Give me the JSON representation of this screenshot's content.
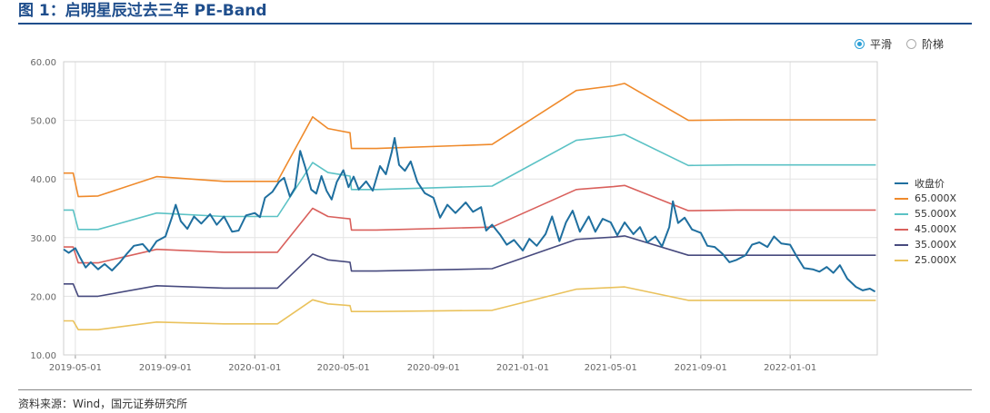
{
  "figure": {
    "title": "图 1：启明星辰过去三年 PE-Band",
    "source": "资料来源：Wind，国元证券研究所"
  },
  "toggle": {
    "options": [
      {
        "label": "平滑",
        "selected": true
      },
      {
        "label": "阶梯",
        "selected": false
      }
    ]
  },
  "colors": {
    "price": "#1f6f9f",
    "pe65": "#ef8a2b",
    "pe55": "#5bc2c5",
    "pe45": "#d9605c",
    "pe35": "#474a7e",
    "pe25": "#eac25c",
    "grid": "#e3e3e3",
    "axis_text": "#666666"
  },
  "chart_data": {
    "type": "line",
    "title": "",
    "xlabel": "",
    "ylabel": "",
    "ylim": [
      10,
      60
    ],
    "yticks": [
      "10.00",
      "20.00",
      "30.00",
      "40.00",
      "50.00",
      "60.00"
    ],
    "xticks": [
      "2019-05-01",
      "2019-09-01",
      "2020-01-01",
      "2020-05-01",
      "2020-09-01",
      "2021-01-01",
      "2021-05-01",
      "2021-09-01",
      "2022-01-01"
    ],
    "xrange": [
      "2019-04-15",
      "2022-04-30"
    ],
    "grid": true,
    "legend_position": "right",
    "series": [
      {
        "name": "收盘价",
        "key": "price",
        "points": [
          [
            "2019-04-15",
            28.0
          ],
          [
            "2019-04-22",
            27.4
          ],
          [
            "2019-05-01",
            28.2
          ],
          [
            "2019-05-08",
            26.5
          ],
          [
            "2019-05-15",
            24.9
          ],
          [
            "2019-05-22",
            25.8
          ],
          [
            "2019-06-01",
            24.6
          ],
          [
            "2019-06-10",
            25.5
          ],
          [
            "2019-06-20",
            24.4
          ],
          [
            "2019-07-01",
            25.8
          ],
          [
            "2019-07-10",
            27.2
          ],
          [
            "2019-07-20",
            28.6
          ],
          [
            "2019-08-01",
            28.9
          ],
          [
            "2019-08-10",
            27.6
          ],
          [
            "2019-08-20",
            29.4
          ],
          [
            "2019-09-01",
            30.2
          ],
          [
            "2019-09-10",
            33.5
          ],
          [
            "2019-09-15",
            35.6
          ],
          [
            "2019-09-22",
            32.8
          ],
          [
            "2019-10-01",
            31.5
          ],
          [
            "2019-10-10",
            33.6
          ],
          [
            "2019-10-20",
            32.4
          ],
          [
            "2019-11-01",
            34.0
          ],
          [
            "2019-11-10",
            32.2
          ],
          [
            "2019-11-20",
            33.6
          ],
          [
            "2019-12-01",
            31.0
          ],
          [
            "2019-12-10",
            31.2
          ],
          [
            "2019-12-20",
            33.8
          ],
          [
            "2020-01-01",
            34.2
          ],
          [
            "2020-01-08",
            33.5
          ],
          [
            "2020-01-15",
            36.8
          ],
          [
            "2020-01-25",
            37.8
          ],
          [
            "2020-02-03",
            39.5
          ],
          [
            "2020-02-10",
            40.2
          ],
          [
            "2020-02-18",
            37.0
          ],
          [
            "2020-02-25",
            38.5
          ],
          [
            "2020-03-03",
            44.8
          ],
          [
            "2020-03-10",
            42.0
          ],
          [
            "2020-03-18",
            38.2
          ],
          [
            "2020-03-25",
            37.5
          ],
          [
            "2020-04-01",
            40.5
          ],
          [
            "2020-04-08",
            38.0
          ],
          [
            "2020-04-15",
            36.5
          ],
          [
            "2020-04-22",
            39.5
          ],
          [
            "2020-05-01",
            41.5
          ],
          [
            "2020-05-08",
            38.6
          ],
          [
            "2020-05-15",
            40.4
          ],
          [
            "2020-05-22",
            38.2
          ],
          [
            "2020-06-01",
            39.6
          ],
          [
            "2020-06-10",
            38.0
          ],
          [
            "2020-06-20",
            42.2
          ],
          [
            "2020-06-28",
            40.8
          ],
          [
            "2020-07-06",
            44.6
          ],
          [
            "2020-07-10",
            47.0
          ],
          [
            "2020-07-16",
            42.4
          ],
          [
            "2020-07-24",
            41.4
          ],
          [
            "2020-08-01",
            43.0
          ],
          [
            "2020-08-10",
            39.5
          ],
          [
            "2020-08-20",
            37.6
          ],
          [
            "2020-09-01",
            36.8
          ],
          [
            "2020-09-10",
            33.4
          ],
          [
            "2020-09-20",
            35.6
          ],
          [
            "2020-10-01",
            34.2
          ],
          [
            "2020-10-15",
            36.0
          ],
          [
            "2020-10-25",
            34.4
          ],
          [
            "2020-11-05",
            35.2
          ],
          [
            "2020-11-12",
            31.2
          ],
          [
            "2020-11-20",
            32.2
          ],
          [
            "2020-12-01",
            30.5
          ],
          [
            "2020-12-10",
            28.8
          ],
          [
            "2020-12-20",
            29.6
          ],
          [
            "2021-01-01",
            27.8
          ],
          [
            "2021-01-10",
            29.8
          ],
          [
            "2021-01-20",
            28.6
          ],
          [
            "2021-02-01",
            30.6
          ],
          [
            "2021-02-10",
            33.6
          ],
          [
            "2021-02-20",
            29.4
          ],
          [
            "2021-03-01",
            32.6
          ],
          [
            "2021-03-10",
            34.6
          ],
          [
            "2021-03-20",
            31.0
          ],
          [
            "2021-04-01",
            33.6
          ],
          [
            "2021-04-10",
            31.0
          ],
          [
            "2021-04-20",
            33.2
          ],
          [
            "2021-05-01",
            32.6
          ],
          [
            "2021-05-10",
            30.4
          ],
          [
            "2021-05-20",
            32.6
          ],
          [
            "2021-06-01",
            30.6
          ],
          [
            "2021-06-10",
            31.8
          ],
          [
            "2021-06-20",
            29.2
          ],
          [
            "2021-07-01",
            30.2
          ],
          [
            "2021-07-10",
            28.5
          ],
          [
            "2021-07-20",
            31.8
          ],
          [
            "2021-07-25",
            36.2
          ],
          [
            "2021-08-01",
            32.5
          ],
          [
            "2021-08-10",
            33.4
          ],
          [
            "2021-08-20",
            31.4
          ],
          [
            "2021-09-01",
            30.8
          ],
          [
            "2021-09-10",
            28.6
          ],
          [
            "2021-09-20",
            28.4
          ],
          [
            "2021-10-01",
            27.2
          ],
          [
            "2021-10-10",
            25.8
          ],
          [
            "2021-10-20",
            26.2
          ],
          [
            "2021-11-01",
            27.0
          ],
          [
            "2021-11-10",
            28.8
          ],
          [
            "2021-11-20",
            29.2
          ],
          [
            "2021-12-01",
            28.4
          ],
          [
            "2021-12-10",
            30.2
          ],
          [
            "2021-12-20",
            29.0
          ],
          [
            "2022-01-01",
            28.8
          ],
          [
            "2022-01-10",
            26.8
          ],
          [
            "2022-01-20",
            24.8
          ],
          [
            "2022-02-01",
            24.6
          ],
          [
            "2022-02-10",
            24.2
          ],
          [
            "2022-02-20",
            25.0
          ],
          [
            "2022-03-01",
            24.0
          ],
          [
            "2022-03-10",
            25.3
          ],
          [
            "2022-03-20",
            23.0
          ],
          [
            "2022-04-01",
            21.6
          ],
          [
            "2022-04-10",
            21.0
          ],
          [
            "2022-04-20",
            21.3
          ],
          [
            "2022-04-27",
            20.8
          ]
        ]
      },
      {
        "name": "65.000X",
        "key": "pe65",
        "points": [
          [
            "2019-04-15",
            41.0
          ],
          [
            "2019-04-28",
            41.0
          ],
          [
            "2019-05-05",
            37.0
          ],
          [
            "2019-06-01",
            37.1
          ],
          [
            "2019-08-20",
            40.4
          ],
          [
            "2019-11-20",
            39.6
          ],
          [
            "2020-02-01",
            39.6
          ],
          [
            "2020-03-20",
            50.6
          ],
          [
            "2020-04-10",
            48.6
          ],
          [
            "2020-05-10",
            47.9
          ],
          [
            "2020-05-12",
            45.2
          ],
          [
            "2020-06-15",
            45.2
          ],
          [
            "2020-11-20",
            45.9
          ],
          [
            "2021-03-15",
            55.1
          ],
          [
            "2021-05-05",
            55.9
          ],
          [
            "2021-05-20",
            56.3
          ],
          [
            "2021-08-15",
            50.0
          ],
          [
            "2021-10-20",
            50.1
          ],
          [
            "2022-04-28",
            50.1
          ]
        ]
      },
      {
        "name": "55.000X",
        "key": "pe55",
        "points": [
          [
            "2019-04-15",
            34.7
          ],
          [
            "2019-04-28",
            34.7
          ],
          [
            "2019-05-05",
            31.4
          ],
          [
            "2019-06-01",
            31.4
          ],
          [
            "2019-08-20",
            34.2
          ],
          [
            "2019-11-20",
            33.6
          ],
          [
            "2020-02-01",
            33.6
          ],
          [
            "2020-03-20",
            42.8
          ],
          [
            "2020-04-10",
            41.1
          ],
          [
            "2020-05-10",
            40.5
          ],
          [
            "2020-05-12",
            38.2
          ],
          [
            "2020-06-15",
            38.2
          ],
          [
            "2020-11-20",
            38.8
          ],
          [
            "2021-03-15",
            46.6
          ],
          [
            "2021-05-05",
            47.3
          ],
          [
            "2021-05-20",
            47.6
          ],
          [
            "2021-08-15",
            42.3
          ],
          [
            "2021-10-20",
            42.4
          ],
          [
            "2022-04-28",
            42.4
          ]
        ]
      },
      {
        "name": "45.000X",
        "key": "pe45",
        "points": [
          [
            "2019-04-15",
            28.4
          ],
          [
            "2019-04-28",
            28.4
          ],
          [
            "2019-05-05",
            25.7
          ],
          [
            "2019-06-01",
            25.7
          ],
          [
            "2019-08-20",
            28.0
          ],
          [
            "2019-11-20",
            27.5
          ],
          [
            "2020-02-01",
            27.5
          ],
          [
            "2020-03-20",
            35.0
          ],
          [
            "2020-04-10",
            33.6
          ],
          [
            "2020-05-10",
            33.2
          ],
          [
            "2020-05-12",
            31.3
          ],
          [
            "2020-06-15",
            31.3
          ],
          [
            "2020-11-20",
            31.8
          ],
          [
            "2021-03-15",
            38.2
          ],
          [
            "2021-05-05",
            38.7
          ],
          [
            "2021-05-20",
            38.9
          ],
          [
            "2021-08-15",
            34.6
          ],
          [
            "2021-10-20",
            34.7
          ],
          [
            "2022-04-28",
            34.7
          ]
        ]
      },
      {
        "name": "35.000X",
        "key": "pe35",
        "points": [
          [
            "2019-04-15",
            22.1
          ],
          [
            "2019-04-28",
            22.1
          ],
          [
            "2019-05-05",
            20.0
          ],
          [
            "2019-06-01",
            20.0
          ],
          [
            "2019-08-20",
            21.8
          ],
          [
            "2019-11-20",
            21.4
          ],
          [
            "2020-02-01",
            21.4
          ],
          [
            "2020-03-20",
            27.2
          ],
          [
            "2020-04-10",
            26.2
          ],
          [
            "2020-05-10",
            25.8
          ],
          [
            "2020-05-12",
            24.3
          ],
          [
            "2020-06-15",
            24.3
          ],
          [
            "2020-11-20",
            24.7
          ],
          [
            "2021-03-15",
            29.7
          ],
          [
            "2021-05-05",
            30.1
          ],
          [
            "2021-05-20",
            30.3
          ],
          [
            "2021-08-15",
            27.0
          ],
          [
            "2021-10-20",
            27.0
          ],
          [
            "2022-04-28",
            27.0
          ]
        ]
      },
      {
        "name": "25.000X",
        "key": "pe25",
        "points": [
          [
            "2019-04-15",
            15.8
          ],
          [
            "2019-04-28",
            15.8
          ],
          [
            "2019-05-05",
            14.3
          ],
          [
            "2019-06-01",
            14.3
          ],
          [
            "2019-08-20",
            15.6
          ],
          [
            "2019-11-20",
            15.3
          ],
          [
            "2020-02-01",
            15.3
          ],
          [
            "2020-03-20",
            19.4
          ],
          [
            "2020-04-10",
            18.7
          ],
          [
            "2020-05-10",
            18.4
          ],
          [
            "2020-05-12",
            17.4
          ],
          [
            "2020-06-15",
            17.4
          ],
          [
            "2020-11-20",
            17.6
          ],
          [
            "2021-03-15",
            21.2
          ],
          [
            "2021-05-05",
            21.5
          ],
          [
            "2021-05-20",
            21.6
          ],
          [
            "2021-08-15",
            19.3
          ],
          [
            "2021-10-20",
            19.3
          ],
          [
            "2022-04-28",
            19.3
          ]
        ]
      }
    ]
  }
}
